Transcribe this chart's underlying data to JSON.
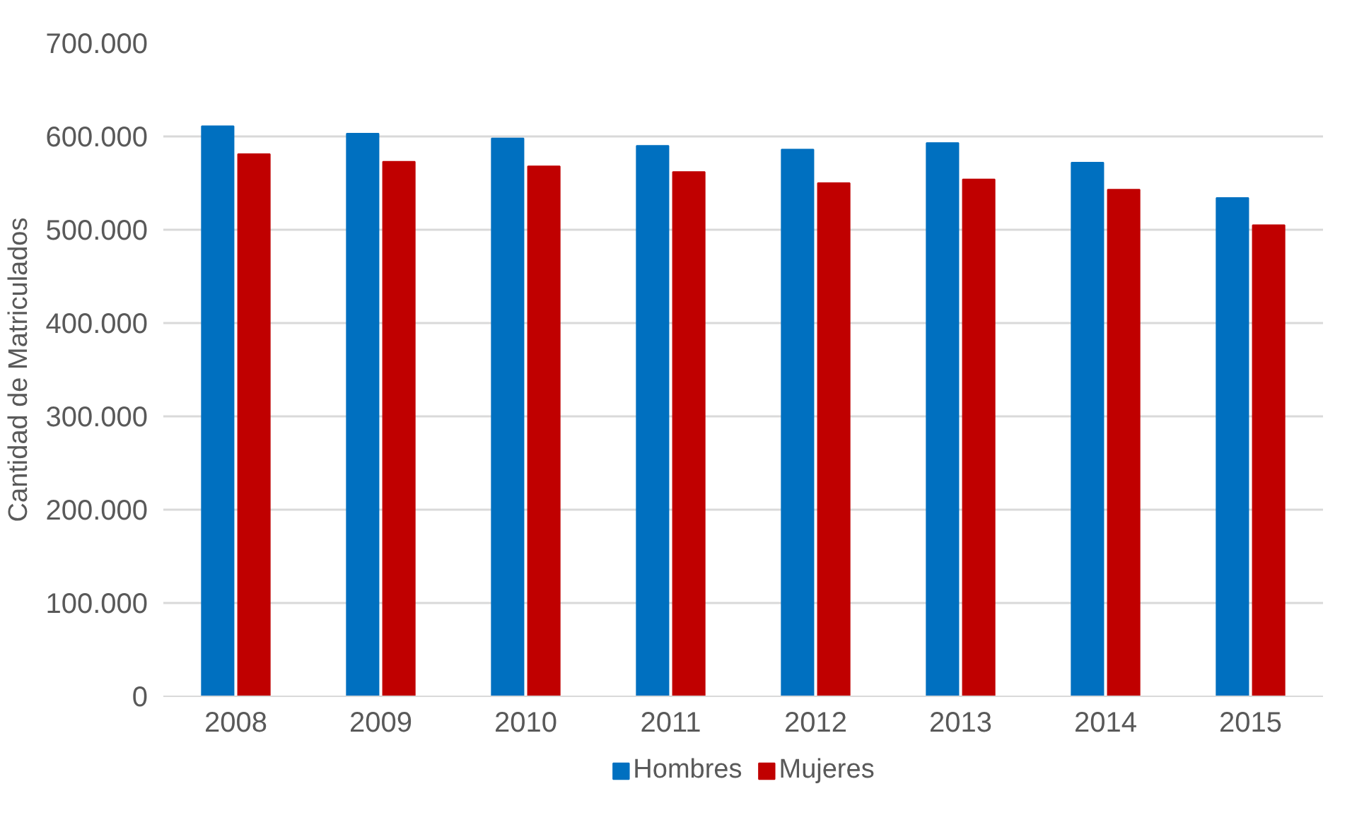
{
  "chart_data": {
    "type": "bar",
    "ylabel": "Cantidad de Matriculados",
    "categories": [
      "2008",
      "2009",
      "2010",
      "2011",
      "2012",
      "2013",
      "2014",
      "2015"
    ],
    "series": [
      {
        "name": "Hombres",
        "color": "#0070c0",
        "values": [
          611000,
          603000,
          598000,
          590000,
          586000,
          593000,
          572000,
          534000
        ]
      },
      {
        "name": "Mujeres",
        "color": "#c00000",
        "values": [
          581000,
          573000,
          568000,
          562000,
          550000,
          554000,
          543000,
          505000
        ]
      }
    ],
    "ylim": [
      0,
      700000
    ],
    "yticks": [
      {
        "value": 0,
        "label": "0"
      },
      {
        "value": 100000,
        "label": "100.000"
      },
      {
        "value": 200000,
        "label": "200.000"
      },
      {
        "value": 300000,
        "label": "300.000"
      },
      {
        "value": 400000,
        "label": "400.000"
      },
      {
        "value": 500000,
        "label": "500.000"
      },
      {
        "value": 600000,
        "label": "600.000"
      },
      {
        "value": 700000,
        "label": "700.000"
      }
    ],
    "grid": "y",
    "legend": "bottom"
  }
}
